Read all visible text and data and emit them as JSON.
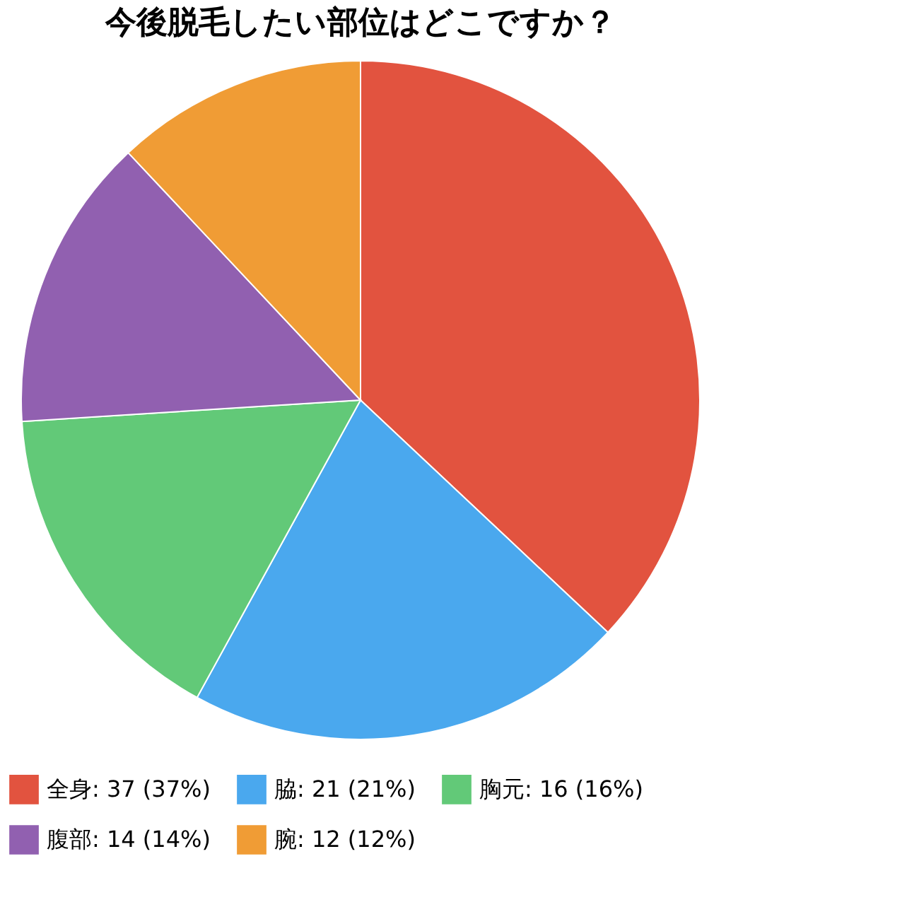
{
  "chart_data": {
    "type": "pie",
    "title": "今後脱毛したい部位はどこですか？",
    "categories": [
      "全身",
      "脇",
      "胸元",
      "腹部",
      "腕"
    ],
    "values": [
      37,
      21,
      16,
      14,
      12
    ],
    "value_labels": [
      "37 (37%)",
      "21 (21%)",
      "16 (16%)",
      "14 (14%)",
      "12 (12%)"
    ],
    "colors": [
      "#e2533f",
      "#4aa8ee",
      "#62c978",
      "#9160b0",
      "#f09c35"
    ],
    "legend": "bottom"
  }
}
